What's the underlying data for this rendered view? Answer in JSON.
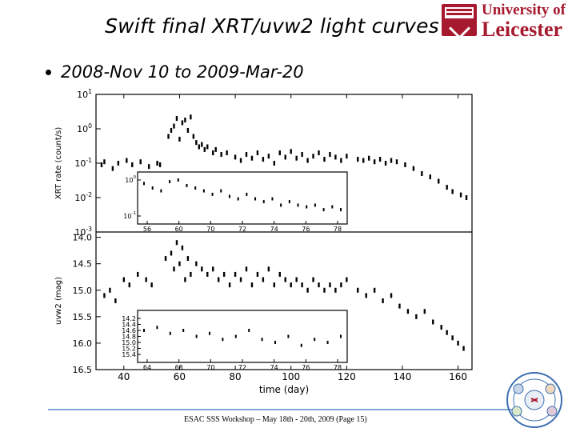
{
  "slide": {
    "title": "Swift final XRT/uvw2 light curves",
    "bullet_text": "2008-Nov 10 to 2009-Mar-20",
    "footer": "ESAC SSS Workshop – May 18th - 20th, 2009 (Page 15)",
    "logo": {
      "line1": "University of",
      "line2": "Leicester"
    }
  },
  "colors": {
    "brand_red": "#a6192e",
    "footer_line": "#7fa7d6",
    "emblem_blue": "#3c6fb0"
  },
  "icons": {
    "logo_shield": "university-shield-icon",
    "bullet": "bullet-dot-icon",
    "emblem": "swift-mission-emblem-icon"
  },
  "chart_data": {
    "type": "scatter",
    "xlabel": "time (day)",
    "xlim": [
      30,
      165
    ],
    "x_ticks": [
      "40",
      "60",
      "80",
      "100",
      "120",
      "140",
      "160"
    ],
    "panels": [
      {
        "id": "xrt",
        "ylabel": "XRT rate (count/s)",
        "yscale": "log",
        "ylim": [
          0.001,
          10
        ],
        "y_ticks": [
          "10^1",
          "10^0",
          "10^-1",
          "10^-2",
          "10^-3"
        ],
        "points": [
          [
            32,
            0.09
          ],
          [
            33,
            0.11
          ],
          [
            36,
            0.07
          ],
          [
            38,
            0.1
          ],
          [
            41,
            0.12
          ],
          [
            43,
            0.09
          ],
          [
            46,
            0.11
          ],
          [
            49,
            0.08
          ],
          [
            52,
            0.1
          ],
          [
            53,
            0.09
          ],
          [
            56,
            0.6
          ],
          [
            57,
            0.9
          ],
          [
            58,
            1.2
          ],
          [
            59,
            2.0
          ],
          [
            60,
            0.5
          ],
          [
            61,
            1.5
          ],
          [
            62,
            1.8
          ],
          [
            63,
            0.9
          ],
          [
            64,
            2.2
          ],
          [
            65,
            0.6
          ],
          [
            66,
            0.4
          ],
          [
            67,
            0.3
          ],
          [
            68,
            0.35
          ],
          [
            69,
            0.25
          ],
          [
            70,
            0.3
          ],
          [
            72,
            0.2
          ],
          [
            73,
            0.25
          ],
          [
            75,
            0.18
          ],
          [
            77,
            0.2
          ],
          [
            80,
            0.15
          ],
          [
            82,
            0.12
          ],
          [
            84,
            0.18
          ],
          [
            86,
            0.14
          ],
          [
            88,
            0.2
          ],
          [
            90,
            0.13
          ],
          [
            92,
            0.16
          ],
          [
            94,
            0.1
          ],
          [
            96,
            0.2
          ],
          [
            98,
            0.15
          ],
          [
            100,
            0.22
          ],
          [
            102,
            0.14
          ],
          [
            104,
            0.18
          ],
          [
            106,
            0.12
          ],
          [
            108,
            0.16
          ],
          [
            110,
            0.2
          ],
          [
            112,
            0.13
          ],
          [
            114,
            0.18
          ],
          [
            116,
            0.15
          ],
          [
            118,
            0.12
          ],
          [
            120,
            0.16
          ],
          [
            124,
            0.13
          ],
          [
            126,
            0.12
          ],
          [
            128,
            0.14
          ],
          [
            130,
            0.11
          ],
          [
            132,
            0.13
          ],
          [
            134,
            0.1
          ],
          [
            136,
            0.12
          ],
          [
            138,
            0.11
          ],
          [
            141,
            0.09
          ],
          [
            144,
            0.07
          ],
          [
            147,
            0.05
          ],
          [
            150,
            0.04
          ],
          [
            153,
            0.03
          ],
          [
            156,
            0.02
          ],
          [
            158,
            0.015
          ],
          [
            161,
            0.012
          ],
          [
            163,
            0.01
          ]
        ],
        "inset": {
          "x_ticks": [
            "56",
            "60",
            "70",
            "72",
            "74",
            "76",
            "78"
          ],
          "y_ticks": [
            "10^0",
            "10^-1"
          ],
          "points": [
            [
              56,
              0.8
            ],
            [
              57,
              0.6
            ],
            [
              58,
              0.5
            ],
            [
              59,
              0.9
            ],
            [
              60,
              1.0
            ],
            [
              61,
              0.7
            ],
            [
              62,
              0.6
            ],
            [
              63,
              0.5
            ],
            [
              64,
              0.4
            ],
            [
              65,
              0.5
            ],
            [
              66,
              0.35
            ],
            [
              67,
              0.3
            ],
            [
              68,
              0.4
            ],
            [
              69,
              0.3
            ],
            [
              70,
              0.25
            ],
            [
              71,
              0.3
            ],
            [
              72,
              0.2
            ],
            [
              73,
              0.25
            ],
            [
              74,
              0.2
            ],
            [
              75,
              0.18
            ],
            [
              76,
              0.2
            ],
            [
              77,
              0.15
            ],
            [
              78,
              0.18
            ],
            [
              79,
              0.15
            ]
          ]
        }
      },
      {
        "id": "uvw2",
        "ylabel": "uvw2 (mag)",
        "yscale": "linear-inverted",
        "ylim": [
          16.5,
          13.9
        ],
        "y_ticks": [
          "14.0",
          "14.5",
          "15.0",
          "15.5",
          "16.0",
          "16.5"
        ],
        "points": [
          [
            33,
            15.1
          ],
          [
            35,
            15.0
          ],
          [
            37,
            15.2
          ],
          [
            40,
            14.8
          ],
          [
            42,
            14.9
          ],
          [
            45,
            14.7
          ],
          [
            48,
            14.8
          ],
          [
            50,
            14.9
          ],
          [
            55,
            14.4
          ],
          [
            57,
            14.3
          ],
          [
            58,
            14.6
          ],
          [
            59,
            14.1
          ],
          [
            60,
            14.5
          ],
          [
            61,
            14.2
          ],
          [
            62,
            14.8
          ],
          [
            63,
            14.4
          ],
          [
            64,
            14.7
          ],
          [
            66,
            14.5
          ],
          [
            68,
            14.6
          ],
          [
            70,
            14.7
          ],
          [
            72,
            14.6
          ],
          [
            74,
            14.8
          ],
          [
            76,
            14.7
          ],
          [
            78,
            14.9
          ],
          [
            80,
            14.7
          ],
          [
            82,
            14.8
          ],
          [
            84,
            14.6
          ],
          [
            86,
            14.9
          ],
          [
            88,
            14.7
          ],
          [
            90,
            14.8
          ],
          [
            92,
            14.6
          ],
          [
            94,
            14.9
          ],
          [
            96,
            14.7
          ],
          [
            98,
            14.8
          ],
          [
            100,
            14.9
          ],
          [
            102,
            14.8
          ],
          [
            104,
            14.9
          ],
          [
            106,
            15.0
          ],
          [
            108,
            14.8
          ],
          [
            110,
            14.9
          ],
          [
            112,
            15.0
          ],
          [
            114,
            14.9
          ],
          [
            116,
            15.0
          ],
          [
            118,
            14.9
          ],
          [
            120,
            14.8
          ],
          [
            124,
            15.0
          ],
          [
            127,
            15.1
          ],
          [
            130,
            15.0
          ],
          [
            133,
            15.2
          ],
          [
            136,
            15.1
          ],
          [
            139,
            15.3
          ],
          [
            142,
            15.4
          ],
          [
            145,
            15.5
          ],
          [
            148,
            15.4
          ],
          [
            151,
            15.6
          ],
          [
            154,
            15.7
          ],
          [
            156,
            15.8
          ],
          [
            158,
            15.9
          ],
          [
            160,
            16.0
          ],
          [
            162,
            16.1
          ]
        ],
        "inset": {
          "x_ticks": [
            "64",
            "68",
            "70",
            "72",
            "74",
            "76",
            "78"
          ],
          "y_ticks": [
            "14.2",
            "14.4",
            "14.6",
            "14.8",
            "15.0",
            "15.2",
            "15.4"
          ],
          "points": [
            [
              64,
              14.6
            ],
            [
              65,
              14.5
            ],
            [
              66,
              14.7
            ],
            [
              67,
              14.6
            ],
            [
              68,
              14.8
            ],
            [
              69,
              14.7
            ],
            [
              70,
              14.9
            ],
            [
              71,
              14.8
            ],
            [
              72,
              14.6
            ],
            [
              73,
              14.9
            ],
            [
              74,
              15.0
            ],
            [
              75,
              14.8
            ],
            [
              76,
              15.1
            ],
            [
              77,
              14.9
            ],
            [
              78,
              15.0
            ],
            [
              79,
              14.8
            ]
          ]
        }
      }
    ]
  }
}
